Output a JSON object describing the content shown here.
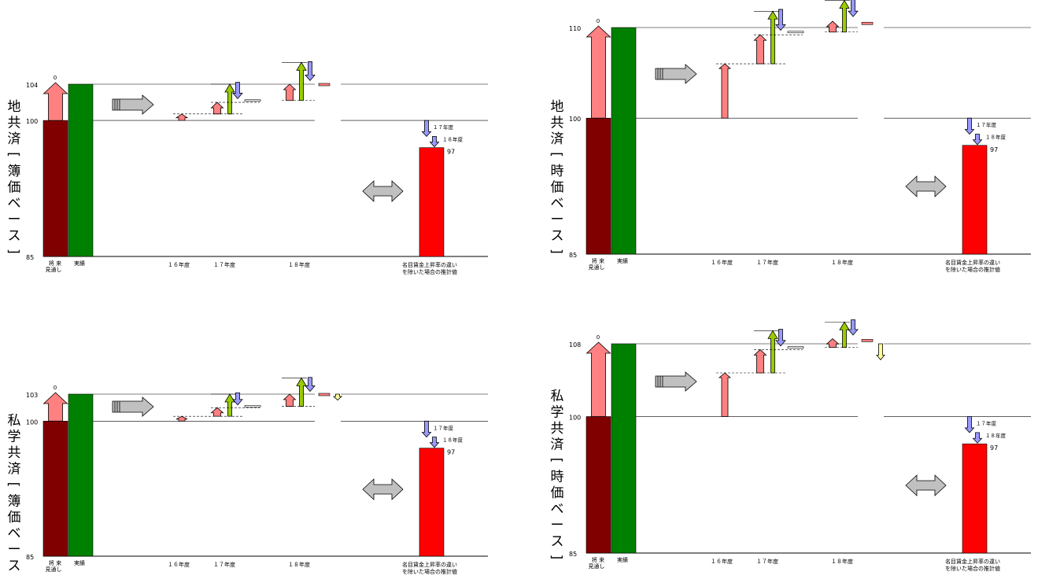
{
  "chart_data": [
    {
      "type": "waterfall-bar",
      "side_title": "地共済［簿価ベース］",
      "ymin": 85,
      "ylim": [
        85,
        105
      ],
      "yticks": [
        {
          "value": 85,
          "label": "85"
        },
        {
          "value": 100,
          "label": "100"
        },
        {
          "value": 104,
          "label": "104"
        }
      ],
      "zero_label": "0",
      "x_labels": {
        "forecast": [
          "将 来",
          "見通し"
        ],
        "actual": "実績",
        "fy16": "１６年度",
        "fy17": "１７年度",
        "fy18": "１８年度",
        "adjusted": [
          "名目賃金上昇率の違い",
          "を除いた場合の推計値"
        ]
      },
      "forecast_value": 100,
      "actual_value": 104,
      "adjusted": {
        "value": 97,
        "label": "97",
        "fy17_label": "１７年度",
        "fy18_label": "１８年度"
      }
    },
    {
      "type": "waterfall-bar",
      "side_title": "地共済［時価ベース］",
      "ymin": 85,
      "ylim": [
        85,
        111.5
      ],
      "yticks": [
        {
          "value": 85,
          "label": "85"
        },
        {
          "value": 100,
          "label": "100"
        },
        {
          "value": 110,
          "label": "110"
        }
      ],
      "zero_label": "0",
      "x_labels": {
        "forecast": [
          "将 来",
          "見通し"
        ],
        "actual": "実績",
        "fy16": "１６年度",
        "fy17": "１７年度",
        "fy18": "１８年度",
        "adjusted": [
          "名目賃金上昇率の違い",
          "を除いた場合の推計値"
        ]
      },
      "forecast_value": 100,
      "actual_value": 110,
      "adjusted": {
        "value": 97,
        "label": "97",
        "fy17_label": "１７年度",
        "fy18_label": "１８年度"
      }
    },
    {
      "type": "waterfall-bar",
      "side_title": "私学共済［簿価ベース］",
      "ymin": 85,
      "ylim": [
        85,
        104.5
      ],
      "yticks": [
        {
          "value": 85,
          "label": "85"
        },
        {
          "value": 100,
          "label": "100"
        },
        {
          "value": 103,
          "label": "103"
        }
      ],
      "zero_label": "0",
      "x_labels": {
        "forecast": [
          "将 来",
          "見通し"
        ],
        "actual": "実績",
        "fy16": "１６年度",
        "fy17": "１７年度",
        "fy18": "１８年度",
        "adjusted": [
          "名目賃金上昇率の違い",
          "を除いた場合の推計値"
        ]
      },
      "forecast_value": 100,
      "actual_value": 103,
      "adjusted": {
        "value": 97,
        "label": "97",
        "fy17_label": "１７年度",
        "fy18_label": "１８年度"
      }
    },
    {
      "type": "waterfall-bar",
      "side_title": "私学共済［時価ベース］",
      "ymin": 85,
      "ylim": [
        85,
        110
      ],
      "yticks": [
        {
          "value": 85,
          "label": "85"
        },
        {
          "value": 100,
          "label": "100"
        },
        {
          "value": 108,
          "label": "108"
        }
      ],
      "zero_label": "0",
      "x_labels": {
        "forecast": [
          "将 来",
          "見通し"
        ],
        "actual": "実績",
        "fy16": "１６年度",
        "fy17": "１７年度",
        "fy18": "１８年度",
        "adjusted": [
          "名目賃金上昇率の違い",
          "を除いた場合の推計値"
        ]
      },
      "forecast_value": 100,
      "actual_value": 108,
      "adjusted": {
        "value": 97,
        "label": "97",
        "fy17_label": "１７年度",
        "fy18_label": "１８年度"
      }
    }
  ],
  "colors": {
    "forecast": "#800000",
    "actual": "#008000",
    "adjusted": "#ff0000",
    "pink_arrow": "#ff8080",
    "green_arrow": "#99cc00",
    "blue_arrow": "#9999ff",
    "yellow_arrow": "#ffff99",
    "gray_arrow": "#c0c0c0"
  }
}
